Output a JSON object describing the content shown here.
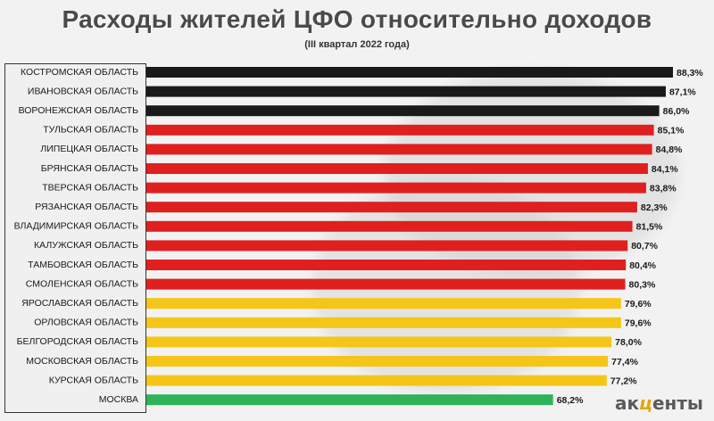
{
  "chart_data": {
    "type": "bar",
    "orientation": "horizontal",
    "title": "Расходы жителей ЦФО относительно доходов",
    "subtitle": "(III квартал 2022 года)",
    "categories": [
      "КОСТРОМСКАЯ ОБЛАСТЬ",
      "ИВАНОВСКАЯ ОБЛАСТЬ",
      "ВОРОНЕЖСКАЯ ОБЛАСТЬ",
      "ТУЛЬСКАЯ ОБЛАСТЬ",
      "ЛИПЕЦКАЯ ОБЛАСТЬ",
      "БРЯНСКАЯ ОБЛАСТЬ",
      "ТВЕРСКАЯ ОБЛАСТЬ",
      "РЯЗАНСКАЯ ОБЛАСТЬ",
      "ВЛАДИМИРСКАЯ ОБЛАСТЬ",
      "КАЛУЖСКАЯ ОБЛАСТЬ",
      "ТАМБОВСКАЯ ОБЛАСТЬ",
      "СМОЛЕНСКАЯ ОБЛАСТЬ",
      "ЯРОСЛАВСКАЯ ОБЛАСТЬ",
      "ОРЛОВСКАЯ ОБЛАСТЬ",
      "БЕЛГОРОДСКАЯ ОБЛАСТЬ",
      "МОСКОВСКАЯ ОБЛАСТЬ",
      "КУРСКАЯ ОБЛАСТЬ",
      "МОСКВА"
    ],
    "values": [
      88.3,
      87.1,
      86.0,
      85.1,
      84.8,
      84.1,
      83.8,
      82.3,
      81.5,
      80.7,
      80.4,
      80.3,
      79.6,
      79.6,
      78.0,
      77.4,
      77.2,
      68.2
    ],
    "value_labels": [
      "88,3%",
      "87,1%",
      "86,0%",
      "85,1%",
      "84,8%",
      "84,1%",
      "83,8%",
      "82,3%",
      "81,5%",
      "80,7%",
      "80,4%",
      "80,3%",
      "79,6%",
      "79,6%",
      "78,0%",
      "77,4%",
      "77,2%",
      "68,2%"
    ],
    "bar_colors": [
      "#1a1a1a",
      "#1a1a1a",
      "#1a1a1a",
      "#e01f1f",
      "#e01f1f",
      "#e01f1f",
      "#e01f1f",
      "#e01f1f",
      "#e01f1f",
      "#e01f1f",
      "#e01f1f",
      "#e01f1f",
      "#f5c518",
      "#f5c518",
      "#f5c518",
      "#f5c518",
      "#f5c518",
      "#2eb35a"
    ],
    "xlim": [
      0,
      88.3
    ],
    "grid": false,
    "legend": "none"
  },
  "branding": {
    "logo_prefix": "ак",
    "logo_mid": "ц",
    "logo_suffix": "енты"
  }
}
